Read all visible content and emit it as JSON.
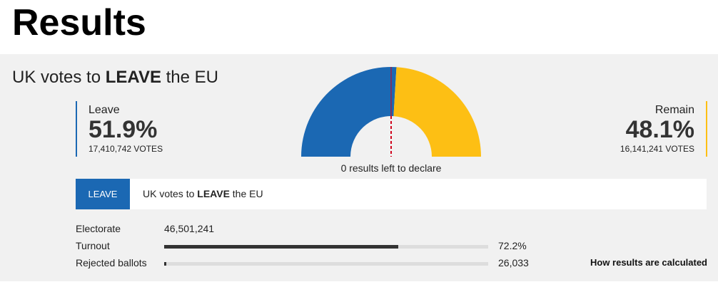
{
  "header": {
    "title": "Results"
  },
  "headline": {
    "prefix": "UK votes to",
    "emphasis": "LEAVE",
    "suffix": "the EU"
  },
  "chart_data": {
    "type": "pie",
    "categories": [
      "Leave",
      "Remain"
    ],
    "values": [
      51.9,
      48.1
    ],
    "value_labels": [
      "51.9%",
      "48.1%"
    ],
    "colors": [
      "#1b68b3",
      "#fdbf14"
    ],
    "votes": [
      17410742,
      16141241
    ],
    "votes_labels": [
      "17,410,742 VOTES",
      "16,141,241 VOTES"
    ],
    "status": "0 results left to declare"
  },
  "banner": {
    "tag": "LEAVE",
    "prefix": "UK votes to",
    "emphasis": "LEAVE",
    "suffix": "the EU"
  },
  "stats": [
    {
      "label": "Electorate",
      "value": 46501241,
      "value_label": "46,501,241"
    },
    {
      "label": "Turnout",
      "value": 72.2,
      "value_label": "72.2%"
    },
    {
      "label": "Rejected ballots",
      "value": 26033,
      "value_label": "26,033"
    }
  ],
  "link": "How results are calculated"
}
